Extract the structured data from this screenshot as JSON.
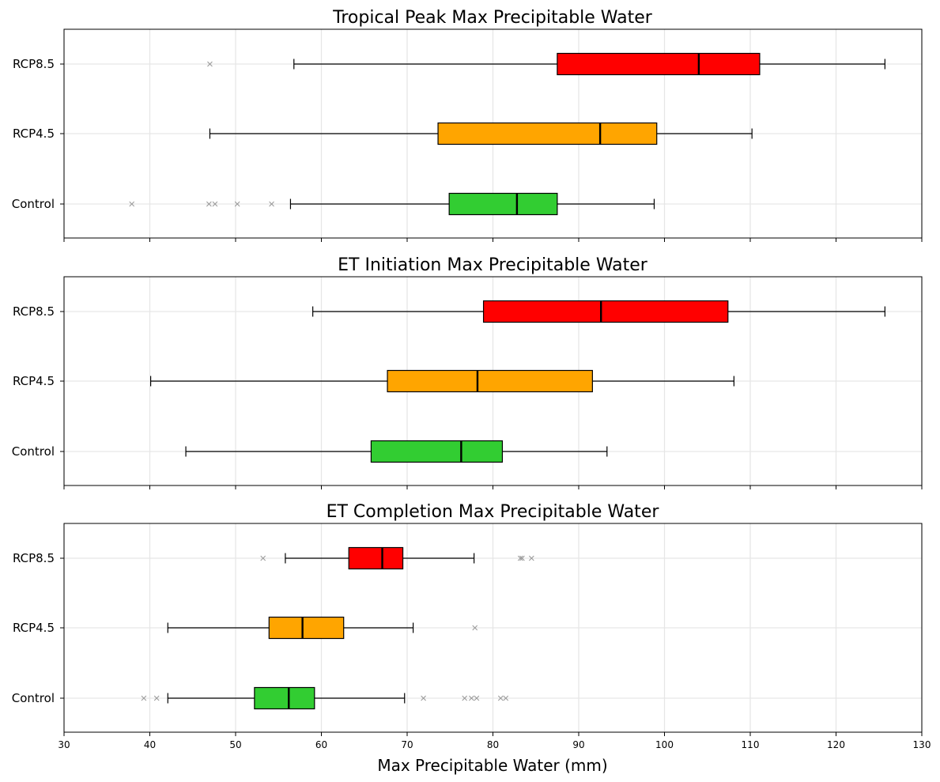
{
  "chart_data": {
    "type": "boxplot",
    "orientation": "horizontal",
    "xlabel": "Max Precipitable Water (mm)",
    "xlim": [
      30,
      130
    ],
    "xticks": [
      30,
      40,
      50,
      60,
      70,
      80,
      90,
      100,
      110,
      120,
      130
    ],
    "grid": true,
    "colors": {
      "Control": "#32cd32",
      "RCP4.5": "#ffa500",
      "RCP8.5": "#ff0000"
    },
    "panels": [
      {
        "title": "Tropical Peak Max Precipitable Water",
        "categories": [
          "Control",
          "RCP4.5",
          "RCP8.5"
        ],
        "boxes": [
          {
            "name": "Control",
            "whislo": 56.4,
            "q1": 74.9,
            "med": 82.8,
            "q3": 87.5,
            "whishi": 98.8,
            "fliers": [
              37.9,
              46.9,
              47.6,
              50.2,
              54.2
            ]
          },
          {
            "name": "RCP4.5",
            "whislo": 47.0,
            "q1": 73.6,
            "med": 92.5,
            "q3": 99.1,
            "whishi": 110.2,
            "fliers": []
          },
          {
            "name": "RCP8.5",
            "whislo": 56.8,
            "q1": 87.5,
            "med": 104.0,
            "q3": 111.1,
            "whishi": 125.7,
            "fliers": [
              47.0
            ]
          }
        ]
      },
      {
        "title": "ET Initiation Max Precipitable Water",
        "categories": [
          "Control",
          "RCP4.5",
          "RCP8.5"
        ],
        "boxes": [
          {
            "name": "Control",
            "whislo": 44.2,
            "q1": 65.8,
            "med": 76.3,
            "q3": 81.1,
            "whishi": 93.3,
            "fliers": []
          },
          {
            "name": "RCP4.5",
            "whislo": 40.1,
            "q1": 67.7,
            "med": 78.2,
            "q3": 91.6,
            "whishi": 108.1,
            "fliers": []
          },
          {
            "name": "RCP8.5",
            "whislo": 59.0,
            "q1": 78.9,
            "med": 92.6,
            "q3": 107.4,
            "whishi": 125.7,
            "fliers": []
          }
        ]
      },
      {
        "title": "ET Completion Max Precipitable Water",
        "categories": [
          "Control",
          "RCP4.5",
          "RCP8.5"
        ],
        "boxes": [
          {
            "name": "Control",
            "whislo": 42.1,
            "q1": 52.2,
            "med": 56.2,
            "q3": 59.2,
            "whishi": 69.7,
            "fliers": [
              39.3,
              40.8,
              71.9,
              76.7,
              77.5,
              78.1,
              80.9,
              81.5
            ]
          },
          {
            "name": "RCP4.5",
            "whislo": 42.1,
            "q1": 53.9,
            "med": 57.8,
            "q3": 62.6,
            "whishi": 70.7,
            "fliers": [
              77.9
            ]
          },
          {
            "name": "RCP8.5",
            "whislo": 55.8,
            "q1": 63.2,
            "med": 67.1,
            "q3": 69.5,
            "whishi": 77.8,
            "fliers": [
              53.2,
              83.2,
              83.4,
              84.5
            ]
          }
        ]
      }
    ]
  }
}
